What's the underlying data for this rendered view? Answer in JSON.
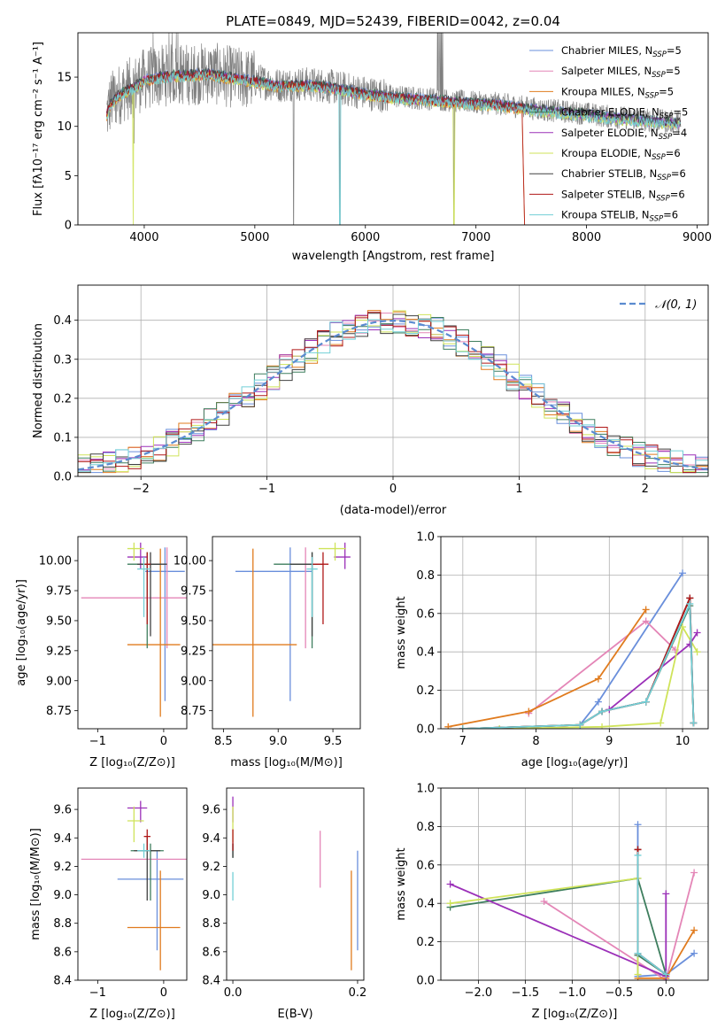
{
  "colors": [
    "#6a8fdb",
    "#e486b7",
    "#e07b1e",
    "#3e7e5e",
    "#9b30b8",
    "#cfe35a",
    "#404040",
    "#b01818",
    "#72cfd6"
  ],
  "chart_data": [
    {
      "id": "spectrum",
      "type": "line",
      "title": "PLATE=0849, MJD=52439, FIBERID=0042, z=0.04",
      "xlabel": "wavelength [Angstrom, rest frame]",
      "ylabel": "Flux [fλ10⁻¹⁷ erg cm⁻² s⁻¹ A⁻¹]",
      "xlim": [
        3400,
        9100
      ],
      "ylim": [
        0,
        19.5
      ],
      "xticks": [
        4000,
        5000,
        6000,
        7000,
        8000,
        9000
      ],
      "yticks": [
        0,
        5,
        10,
        15
      ],
      "grid": false,
      "legend": "top-right",
      "legend_entries": [
        {
          "model": "Chabrier MILES",
          "nssp": "5"
        },
        {
          "model": "Salpeter MILES",
          "nssp": "5"
        },
        {
          "model": "Kroupa MILES",
          "nssp": "5"
        },
        {
          "model": "Chabrier ELODIE",
          "nssp": "5"
        },
        {
          "model": "Salpeter ELODIE",
          "nssp": "4"
        },
        {
          "model": "Kroupa ELODIE",
          "nssp": "6"
        },
        {
          "model": "Chabrier STELIB",
          "nssp": "6"
        },
        {
          "model": "Salpeter STELIB",
          "nssp": "6"
        },
        {
          "model": "Kroupa STELIB",
          "nssp": "6"
        }
      ],
      "nssp_label": "N",
      "nssp_sub": "SSP",
      "approx_continuum": [
        [
          3650,
          11.0
        ],
        [
          3700,
          12.5
        ],
        [
          3800,
          13.5
        ],
        [
          3900,
          14.0
        ],
        [
          4000,
          14.8
        ],
        [
          4200,
          15.2
        ],
        [
          4400,
          15.3
        ],
        [
          4600,
          15.4
        ],
        [
          4800,
          15.0
        ],
        [
          5000,
          14.7
        ],
        [
          5200,
          14.2
        ],
        [
          5400,
          14.3
        ],
        [
          5600,
          14.2
        ],
        [
          5800,
          13.8
        ],
        [
          6000,
          13.4
        ],
        [
          6200,
          13.1
        ],
        [
          6400,
          12.9
        ],
        [
          6600,
          12.8
        ],
        [
          6800,
          12.6
        ],
        [
          7000,
          12.4
        ],
        [
          7200,
          12.3
        ],
        [
          7400,
          12.0
        ],
        [
          7600,
          11.7
        ],
        [
          7800,
          11.5
        ],
        [
          8000,
          11.3
        ],
        [
          8200,
          11.0
        ],
        [
          8500,
          10.7
        ],
        [
          8850,
          10.4
        ]
      ]
    },
    {
      "id": "residuals",
      "type": "line",
      "xlabel": "(data-model)/error",
      "ylabel": "Normed distribution",
      "xlim": [
        -2.5,
        2.5
      ],
      "ylim": [
        0,
        0.49
      ],
      "xticks": [
        -2,
        -1,
        0,
        1,
        2
      ],
      "yticks": [
        0.0,
        0.1,
        0.2,
        0.3,
        0.4
      ],
      "grid": true,
      "legend": "top-right",
      "gaussian_label": "𝒩(0, 1)",
      "bin_width": 0.1
    },
    {
      "id": "age_vs_Z",
      "type": "scatter",
      "xlabel": "Z [log₁₀(Z/Z⊙)]",
      "ylabel": "age  [log₁₀(age/yr)]",
      "xlim": [
        -1.3,
        0.35
      ],
      "ylim": [
        8.6,
        10.2
      ],
      "xticks": [
        -1,
        0
      ],
      "yticks": [
        8.75,
        9.0,
        9.25,
        9.5,
        9.75,
        10.0
      ],
      "points": [
        {
          "x": 0.02,
          "xerr": [
            0.3,
            0.3
          ],
          "y": 9.91,
          "yerr": [
            1.08,
            0.2
          ]
        },
        {
          "x": 0.05,
          "xerr": [
            1.3,
            0.3
          ],
          "y": 9.69,
          "yerr": [
            0.42,
            0.42
          ]
        },
        {
          "x": -0.05,
          "xerr": [
            0.5,
            0.3
          ],
          "y": 9.3,
          "yerr": [
            0.6,
            0.8
          ]
        },
        {
          "x": -0.25,
          "xerr": [
            0.3,
            0.2
          ],
          "y": 9.97,
          "yerr": [
            0.7,
            0.1
          ]
        },
        {
          "x": -0.35,
          "xerr": [
            0.2,
            0.1
          ],
          "y": 10.03,
          "yerr": [
            0.1,
            0.12
          ]
        },
        {
          "x": -0.45,
          "xerr": [
            0.1,
            0.15
          ],
          "y": 10.1,
          "yerr": [
            0.1,
            0.05
          ]
        },
        {
          "x": -0.2,
          "xerr": [
            0.2,
            0.25
          ],
          "y": 9.97,
          "yerr": [
            0.6,
            0.1
          ]
        },
        {
          "x": -0.25,
          "xerr": [
            0.05,
            0.05
          ],
          "y": 9.97,
          "yerr": [
            0.5,
            0.1
          ]
        },
        {
          "x": -0.3,
          "xerr": [
            0.1,
            0.1
          ],
          "y": 9.93,
          "yerr": [
            0.4,
            0.1
          ]
        }
      ]
    },
    {
      "id": "age_vs_mass",
      "type": "scatter",
      "xlabel": "mass [log₁₀(M/M⊙)]",
      "ylabel": "",
      "xlim": [
        8.4,
        9.75
      ],
      "ylim": [
        8.6,
        10.2
      ],
      "xticks": [
        8.5,
        9.0,
        9.5
      ],
      "yticks": [
        8.75,
        9.0,
        9.25,
        9.5,
        9.75,
        10.0
      ],
      "points": [
        {
          "x": 9.11,
          "xerr": [
            0.5,
            0.2
          ],
          "y": 9.91,
          "yerr": [
            1.08,
            0.2
          ]
        },
        {
          "x": 9.25,
          "xerr": [
            0.0,
            0.0
          ],
          "y": 9.69,
          "yerr": [
            0.42,
            0.42
          ]
        },
        {
          "x": 8.77,
          "xerr": [
            0.4,
            0.4
          ],
          "y": 9.3,
          "yerr": [
            0.6,
            0.8
          ]
        },
        {
          "x": 9.31,
          "xerr": [
            0.35,
            0.05
          ],
          "y": 9.97,
          "yerr": [
            0.7,
            0.1
          ]
        },
        {
          "x": 9.61,
          "xerr": [
            0.1,
            0.05
          ],
          "y": 10.03,
          "yerr": [
            0.1,
            0.12
          ]
        },
        {
          "x": 9.52,
          "xerr": [
            0.15,
            0.1
          ],
          "y": 10.1,
          "yerr": [
            0.1,
            0.05
          ]
        },
        {
          "x": 9.31,
          "xerr": [
            0.2,
            0.1
          ],
          "y": 9.97,
          "yerr": [
            0.6,
            0.1
          ]
        },
        {
          "x": 9.41,
          "xerr": [
            0.1,
            0.05
          ],
          "y": 9.97,
          "yerr": [
            0.5,
            0.1
          ]
        },
        {
          "x": 9.31,
          "xerr": [
            0.05,
            0.05
          ],
          "y": 9.93,
          "yerr": [
            0.4,
            0.1
          ]
        }
      ]
    },
    {
      "id": "mw_vs_age",
      "type": "line",
      "xlabel": "age  [log₁₀(age/yr)]",
      "ylabel": "mass weight",
      "xlim": [
        6.7,
        10.35
      ],
      "ylim": [
        0,
        1.0
      ],
      "xticks": [
        7,
        8,
        9,
        10
      ],
      "yticks": [
        0.0,
        0.2,
        0.4,
        0.6,
        0.8,
        1.0
      ],
      "grid": true,
      "series": [
        {
          "x": [
            8.6,
            8.85,
            10.0
          ],
          "y": [
            0.02,
            0.14,
            0.81
          ]
        },
        {
          "x": [
            7.9,
            9.5,
            9.9
          ],
          "y": [
            0.08,
            0.56,
            0.41
          ]
        },
        {
          "x": [
            6.8,
            7.9,
            8.85,
            9.5
          ],
          "y": [
            0.01,
            0.09,
            0.26,
            0.62
          ]
        },
        {
          "x": [
            7.0,
            8.6,
            8.9,
            9.5,
            10.1,
            10.15
          ],
          "y": [
            0.0,
            0.02,
            0.09,
            0.14,
            0.64,
            0.03
          ]
        },
        {
          "x": [
            9.0,
            10.1,
            10.2
          ],
          "y": [
            0.1,
            0.44,
            0.5
          ]
        },
        {
          "x": [
            7.5,
            8.9,
            9.7,
            10.0,
            10.2
          ],
          "y": [
            0.0,
            0.01,
            0.03,
            0.53,
            0.4
          ]
        },
        {
          "x": [
            7.0,
            8.6,
            8.9,
            9.5,
            10.1,
            10.15
          ],
          "y": [
            0.0,
            0.02,
            0.09,
            0.14,
            0.68,
            0.03
          ]
        },
        {
          "x": [
            7.0,
            8.6,
            8.9,
            9.5,
            10.1,
            10.15
          ],
          "y": [
            0.0,
            0.02,
            0.09,
            0.14,
            0.68,
            0.03
          ]
        },
        {
          "x": [
            7.0,
            8.6,
            8.9,
            9.5,
            10.1,
            10.15
          ],
          "y": [
            0.0,
            0.02,
            0.09,
            0.14,
            0.65,
            0.03
          ]
        }
      ]
    },
    {
      "id": "mass_vs_Z",
      "type": "scatter",
      "xlabel": "Z [log₁₀(Z/Z⊙)]",
      "ylabel": "mass [log₁₀(M/M⊙)]",
      "xlim": [
        -1.3,
        0.35
      ],
      "ylim": [
        8.4,
        9.75
      ],
      "xticks": [
        -1,
        0
      ],
      "yticks": [
        8.4,
        8.6,
        8.8,
        9.0,
        9.2,
        9.4,
        9.6
      ],
      "points": [
        {
          "x": -0.1,
          "xerr": [
            0.6,
            0.4
          ],
          "y": 9.11,
          "yerr": [
            0.5,
            0.2
          ]
        },
        {
          "x": 0.05,
          "xerr": [
            1.3,
            0.3
          ],
          "y": 9.25,
          "yerr": [
            0.0,
            0.0
          ]
        },
        {
          "x": -0.05,
          "xerr": [
            0.5,
            0.3
          ],
          "y": 8.77,
          "yerr": [
            0.3,
            0.4
          ]
        },
        {
          "x": -0.2,
          "xerr": [
            0.3,
            0.2
          ],
          "y": 9.31,
          "yerr": [
            0.35,
            0.05
          ]
        },
        {
          "x": -0.35,
          "xerr": [
            0.2,
            0.1
          ],
          "y": 9.61,
          "yerr": [
            0.1,
            0.05
          ]
        },
        {
          "x": -0.45,
          "xerr": [
            0.1,
            0.15
          ],
          "y": 9.52,
          "yerr": [
            0.15,
            0.1
          ]
        },
        {
          "x": -0.25,
          "xerr": [
            0.2,
            0.2
          ],
          "y": 9.31,
          "yerr": [
            0.35,
            0.1
          ]
        },
        {
          "x": -0.25,
          "xerr": [
            0.05,
            0.05
          ],
          "y": 9.41,
          "yerr": [
            0.1,
            0.05
          ]
        },
        {
          "x": -0.3,
          "xerr": [
            0.1,
            0.1
          ],
          "y": 9.31,
          "yerr": [
            0.05,
            0.05
          ]
        }
      ]
    },
    {
      "id": "mass_vs_ebv",
      "type": "scatter",
      "xlabel": "E(B-V)",
      "ylabel": "",
      "xlim": [
        -0.01,
        0.21
      ],
      "ylim": [
        8.4,
        9.75
      ],
      "xticks": [
        0.0,
        0.2
      ],
      "yticks": [
        8.4,
        8.6,
        8.8,
        9.0,
        9.2,
        9.4,
        9.6
      ],
      "points": [
        {
          "x": 0.2,
          "y": 9.11,
          "yerr": [
            0.5,
            0.2
          ]
        },
        {
          "x": 0.14,
          "y": 9.25,
          "yerr": [
            0.2,
            0.2
          ]
        },
        {
          "x": 0.19,
          "y": 8.77,
          "yerr": [
            0.3,
            0.4
          ]
        },
        {
          "x": 0.0,
          "y": 9.31,
          "yerr": [
            0.05,
            0.05
          ]
        },
        {
          "x": 0.0,
          "y": 9.61,
          "yerr": [
            0.1,
            0.08
          ]
        },
        {
          "x": 0.0,
          "y": 9.52,
          "yerr": [
            0.15,
            0.1
          ]
        },
        {
          "x": 0.0,
          "y": 9.31,
          "yerr": [
            0.05,
            0.05
          ]
        },
        {
          "x": 0.0,
          "y": 9.41,
          "yerr": [
            0.1,
            0.05
          ]
        },
        {
          "x": 0.0,
          "y": 9.06,
          "yerr": [
            0.1,
            0.1
          ]
        }
      ]
    },
    {
      "id": "mw_vs_Z",
      "type": "line",
      "xlabel": "Z [log₁₀(Z/Z⊙)]",
      "ylabel": "mass weight",
      "xlim": [
        -2.4,
        0.45
      ],
      "ylim": [
        0,
        1.0
      ],
      "xticks": [
        -2.0,
        -1.5,
        -1.0,
        -0.5,
        0.0
      ],
      "yticks": [
        0.0,
        0.2,
        0.4,
        0.6,
        0.8,
        1.0
      ],
      "grid": true,
      "series": [
        {
          "x": [
            0.3,
            0.0,
            -0.3,
            -0.3
          ],
          "y": [
            0.14,
            0.03,
            0.02,
            0.81
          ]
        },
        {
          "x": [
            -1.3,
            0.0,
            0.3
          ],
          "y": [
            0.41,
            0.0,
            0.56
          ]
        },
        {
          "x": [
            -0.3,
            0.0,
            0.3
          ],
          "y": [
            0.01,
            0.01,
            0.26
          ]
        },
        {
          "x": [
            -2.3,
            -0.3,
            0.0,
            -0.3
          ],
          "y": [
            0.38,
            0.53,
            0.03,
            0.13
          ]
        },
        {
          "x": [
            -2.3,
            0.0,
            0.0
          ],
          "y": [
            0.5,
            0.02,
            0.45
          ]
        },
        {
          "x": [
            -2.3,
            -0.3,
            -0.3
          ],
          "y": [
            0.4,
            0.53,
            0.03
          ]
        },
        {
          "x": [
            -0.3,
            -0.3,
            0.0
          ],
          "y": [
            0.68,
            0.14,
            0.03
          ]
        },
        {
          "x": [
            -0.3,
            -0.3,
            0.0
          ],
          "y": [
            0.68,
            0.14,
            0.03
          ]
        },
        {
          "x": [
            -0.3,
            -0.3,
            0.0
          ],
          "y": [
            0.65,
            0.14,
            0.03
          ]
        }
      ]
    }
  ]
}
